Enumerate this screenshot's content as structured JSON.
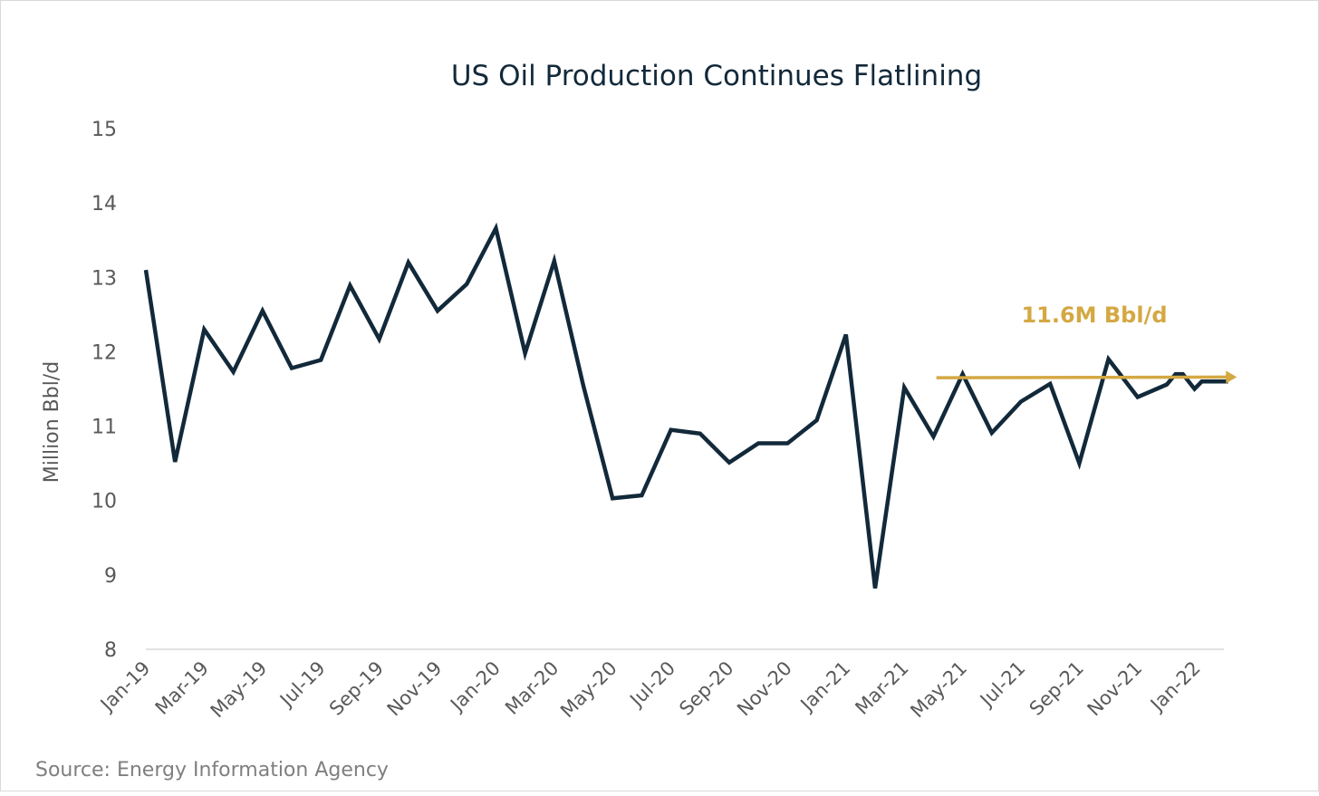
{
  "chart_data": {
    "type": "line",
    "title": "US Oil Production Continues Flatlining",
    "xlabel": "",
    "ylabel": "Million Bbl/d",
    "ylim": [
      8,
      15
    ],
    "yticks": [
      8,
      9,
      10,
      11,
      12,
      13,
      14,
      15
    ],
    "x_unit": "months since Jan-19",
    "xticks": [
      0,
      2,
      4,
      6,
      8,
      10,
      12,
      14,
      16,
      18,
      20,
      22,
      24,
      26,
      28,
      30,
      32,
      34,
      36
    ],
    "xtick_labels": [
      "Jan-19",
      "Mar-19",
      "May-19",
      "Jul-19",
      "Sep-19",
      "Nov-19",
      "Jan-20",
      "Mar-20",
      "May-20",
      "Jul-20",
      "Sep-20",
      "Nov-20",
      "Jan-21",
      "Mar-21",
      "May-21",
      "Jul-21",
      "Sep-21",
      "Nov-21",
      "Jan-22"
    ],
    "grid": false,
    "series": [
      {
        "name": "US Oil Production",
        "color": "#12293a",
        "x": [
          0,
          1,
          2,
          3,
          4,
          5,
          6,
          7,
          8,
          9,
          10,
          11,
          12,
          13,
          14,
          15,
          16,
          17,
          18,
          19,
          20,
          21,
          22,
          23,
          24,
          25,
          26,
          27,
          28,
          29,
          30,
          31,
          32,
          33,
          34,
          35,
          35.3,
          35.55,
          35.95,
          36.2,
          37.1
        ],
        "y": [
          13.1,
          10.52,
          12.3,
          11.73,
          12.55,
          11.78,
          11.89,
          12.89,
          12.17,
          13.2,
          12.55,
          12.91,
          13.66,
          11.98,
          13.22,
          11.54,
          10.03,
          10.07,
          10.95,
          10.9,
          10.51,
          10.77,
          10.77,
          11.08,
          12.23,
          8.82,
          11.52,
          10.86,
          11.7,
          10.91,
          11.33,
          11.57,
          10.5,
          11.9,
          11.39,
          11.56,
          11.7,
          11.7,
          11.5,
          11.6,
          11.6
        ]
      }
    ],
    "annotation": {
      "text": "11.6M Bbl/d",
      "color": "#d4a843",
      "arrow_from": [
        27.1,
        11.65
      ],
      "arrow_to": [
        37.4,
        11.66
      ]
    },
    "source": "Source: Energy Information Agency"
  }
}
